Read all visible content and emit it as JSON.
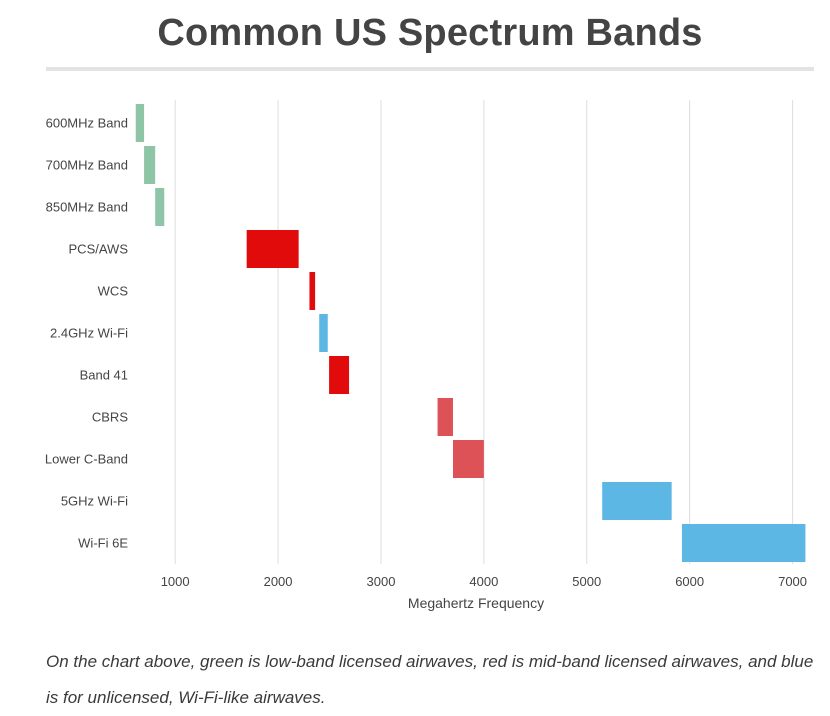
{
  "title": "Common US Spectrum Bands",
  "caption": "On the chart above, green is low-band licensed airwaves, red is mid-band licensed airwaves, and blue is for unlicensed, Wi-Fi-like airwaves.",
  "colors": {
    "low_band": "#8ec5a6",
    "mid_band": "#e20b0b",
    "mid_band_light": "#dd5257",
    "unlicensed": "#5db7e4",
    "grid": "#dddddd",
    "text": "#444444"
  },
  "chart_data": {
    "type": "bar",
    "orientation": "horizontal",
    "style": "floating-range",
    "xlabel": "Megahertz Frequency",
    "xlim": [
      600,
      7150
    ],
    "xticks": [
      1000,
      2000,
      3000,
      4000,
      5000,
      6000,
      7000
    ],
    "grid": true,
    "categories": [
      "600MHz Band",
      "700MHz Band",
      "850MHz Band",
      "PCS/AWS",
      "WCS",
      "2.4GHz Wi-Fi",
      "Band 41",
      "CBRS",
      "Lower C-Band",
      "5GHz Wi-Fi",
      "Wi-Fi 6E"
    ],
    "ranges": [
      {
        "label": "600MHz Band",
        "start": 617,
        "end": 698,
        "color": "#8ec5a6"
      },
      {
        "label": "700MHz Band",
        "start": 698,
        "end": 806,
        "color": "#8ec5a6"
      },
      {
        "label": "850MHz Band",
        "start": 806,
        "end": 894,
        "color": "#8ec5a6"
      },
      {
        "label": "PCS/AWS",
        "start": 1695,
        "end": 2200,
        "color": "#e20b0b"
      },
      {
        "label": "WCS",
        "start": 2305,
        "end": 2360,
        "color": "#e20b0b"
      },
      {
        "label": "2.4GHz Wi-Fi",
        "start": 2400,
        "end": 2483,
        "color": "#5db7e4"
      },
      {
        "label": "Band 41",
        "start": 2496,
        "end": 2690,
        "color": "#e20b0b"
      },
      {
        "label": "CBRS",
        "start": 3550,
        "end": 3700,
        "color": "#dd5257"
      },
      {
        "label": "Lower C-Band",
        "start": 3700,
        "end": 4000,
        "color": "#dd5257"
      },
      {
        "label": "5GHz Wi-Fi",
        "start": 5150,
        "end": 5825,
        "color": "#5db7e4"
      },
      {
        "label": "Wi-Fi 6E",
        "start": 5925,
        "end": 7125,
        "color": "#5db7e4"
      }
    ]
  }
}
